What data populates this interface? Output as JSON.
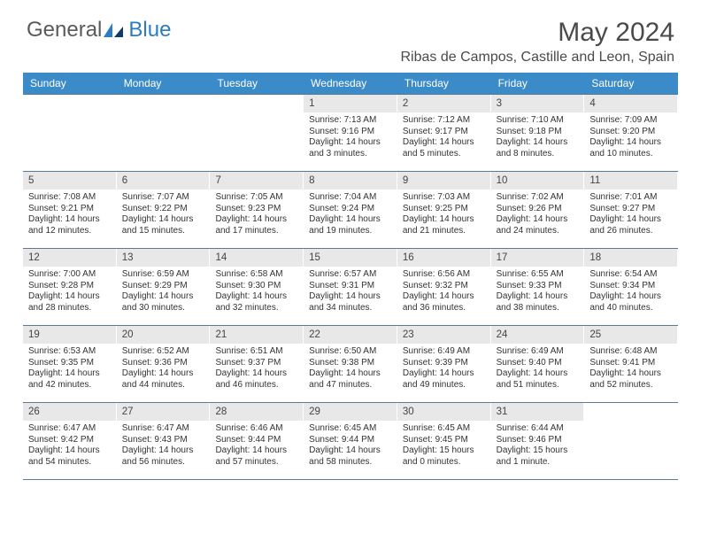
{
  "brand": {
    "part1": "General",
    "part2": "Blue"
  },
  "title": "May 2024",
  "location": "Ribas de Campos, Castille and Leon, Spain",
  "colors": {
    "header_bg": "#3b8bc8",
    "header_text": "#ffffff",
    "daynum_bg": "#e8e8e8",
    "rule": "#5a7a95",
    "brand_grey": "#5a5a5a",
    "brand_blue": "#2b7cc0"
  },
  "day_headers": [
    "Sunday",
    "Monday",
    "Tuesday",
    "Wednesday",
    "Thursday",
    "Friday",
    "Saturday"
  ],
  "weeks": [
    [
      {
        "n": "",
        "sr": "",
        "ss": "",
        "dl": ""
      },
      {
        "n": "",
        "sr": "",
        "ss": "",
        "dl": ""
      },
      {
        "n": "",
        "sr": "",
        "ss": "",
        "dl": ""
      },
      {
        "n": "1",
        "sr": "Sunrise: 7:13 AM",
        "ss": "Sunset: 9:16 PM",
        "dl": "Daylight: 14 hours and 3 minutes."
      },
      {
        "n": "2",
        "sr": "Sunrise: 7:12 AM",
        "ss": "Sunset: 9:17 PM",
        "dl": "Daylight: 14 hours and 5 minutes."
      },
      {
        "n": "3",
        "sr": "Sunrise: 7:10 AM",
        "ss": "Sunset: 9:18 PM",
        "dl": "Daylight: 14 hours and 8 minutes."
      },
      {
        "n": "4",
        "sr": "Sunrise: 7:09 AM",
        "ss": "Sunset: 9:20 PM",
        "dl": "Daylight: 14 hours and 10 minutes."
      }
    ],
    [
      {
        "n": "5",
        "sr": "Sunrise: 7:08 AM",
        "ss": "Sunset: 9:21 PM",
        "dl": "Daylight: 14 hours and 12 minutes."
      },
      {
        "n": "6",
        "sr": "Sunrise: 7:07 AM",
        "ss": "Sunset: 9:22 PM",
        "dl": "Daylight: 14 hours and 15 minutes."
      },
      {
        "n": "7",
        "sr": "Sunrise: 7:05 AM",
        "ss": "Sunset: 9:23 PM",
        "dl": "Daylight: 14 hours and 17 minutes."
      },
      {
        "n": "8",
        "sr": "Sunrise: 7:04 AM",
        "ss": "Sunset: 9:24 PM",
        "dl": "Daylight: 14 hours and 19 minutes."
      },
      {
        "n": "9",
        "sr": "Sunrise: 7:03 AM",
        "ss": "Sunset: 9:25 PM",
        "dl": "Daylight: 14 hours and 21 minutes."
      },
      {
        "n": "10",
        "sr": "Sunrise: 7:02 AM",
        "ss": "Sunset: 9:26 PM",
        "dl": "Daylight: 14 hours and 24 minutes."
      },
      {
        "n": "11",
        "sr": "Sunrise: 7:01 AM",
        "ss": "Sunset: 9:27 PM",
        "dl": "Daylight: 14 hours and 26 minutes."
      }
    ],
    [
      {
        "n": "12",
        "sr": "Sunrise: 7:00 AM",
        "ss": "Sunset: 9:28 PM",
        "dl": "Daylight: 14 hours and 28 minutes."
      },
      {
        "n": "13",
        "sr": "Sunrise: 6:59 AM",
        "ss": "Sunset: 9:29 PM",
        "dl": "Daylight: 14 hours and 30 minutes."
      },
      {
        "n": "14",
        "sr": "Sunrise: 6:58 AM",
        "ss": "Sunset: 9:30 PM",
        "dl": "Daylight: 14 hours and 32 minutes."
      },
      {
        "n": "15",
        "sr": "Sunrise: 6:57 AM",
        "ss": "Sunset: 9:31 PM",
        "dl": "Daylight: 14 hours and 34 minutes."
      },
      {
        "n": "16",
        "sr": "Sunrise: 6:56 AM",
        "ss": "Sunset: 9:32 PM",
        "dl": "Daylight: 14 hours and 36 minutes."
      },
      {
        "n": "17",
        "sr": "Sunrise: 6:55 AM",
        "ss": "Sunset: 9:33 PM",
        "dl": "Daylight: 14 hours and 38 minutes."
      },
      {
        "n": "18",
        "sr": "Sunrise: 6:54 AM",
        "ss": "Sunset: 9:34 PM",
        "dl": "Daylight: 14 hours and 40 minutes."
      }
    ],
    [
      {
        "n": "19",
        "sr": "Sunrise: 6:53 AM",
        "ss": "Sunset: 9:35 PM",
        "dl": "Daylight: 14 hours and 42 minutes."
      },
      {
        "n": "20",
        "sr": "Sunrise: 6:52 AM",
        "ss": "Sunset: 9:36 PM",
        "dl": "Daylight: 14 hours and 44 minutes."
      },
      {
        "n": "21",
        "sr": "Sunrise: 6:51 AM",
        "ss": "Sunset: 9:37 PM",
        "dl": "Daylight: 14 hours and 46 minutes."
      },
      {
        "n": "22",
        "sr": "Sunrise: 6:50 AM",
        "ss": "Sunset: 9:38 PM",
        "dl": "Daylight: 14 hours and 47 minutes."
      },
      {
        "n": "23",
        "sr": "Sunrise: 6:49 AM",
        "ss": "Sunset: 9:39 PM",
        "dl": "Daylight: 14 hours and 49 minutes."
      },
      {
        "n": "24",
        "sr": "Sunrise: 6:49 AM",
        "ss": "Sunset: 9:40 PM",
        "dl": "Daylight: 14 hours and 51 minutes."
      },
      {
        "n": "25",
        "sr": "Sunrise: 6:48 AM",
        "ss": "Sunset: 9:41 PM",
        "dl": "Daylight: 14 hours and 52 minutes."
      }
    ],
    [
      {
        "n": "26",
        "sr": "Sunrise: 6:47 AM",
        "ss": "Sunset: 9:42 PM",
        "dl": "Daylight: 14 hours and 54 minutes."
      },
      {
        "n": "27",
        "sr": "Sunrise: 6:47 AM",
        "ss": "Sunset: 9:43 PM",
        "dl": "Daylight: 14 hours and 56 minutes."
      },
      {
        "n": "28",
        "sr": "Sunrise: 6:46 AM",
        "ss": "Sunset: 9:44 PM",
        "dl": "Daylight: 14 hours and 57 minutes."
      },
      {
        "n": "29",
        "sr": "Sunrise: 6:45 AM",
        "ss": "Sunset: 9:44 PM",
        "dl": "Daylight: 14 hours and 58 minutes."
      },
      {
        "n": "30",
        "sr": "Sunrise: 6:45 AM",
        "ss": "Sunset: 9:45 PM",
        "dl": "Daylight: 15 hours and 0 minutes."
      },
      {
        "n": "31",
        "sr": "Sunrise: 6:44 AM",
        "ss": "Sunset: 9:46 PM",
        "dl": "Daylight: 15 hours and 1 minute."
      },
      {
        "n": "",
        "sr": "",
        "ss": "",
        "dl": ""
      }
    ]
  ]
}
